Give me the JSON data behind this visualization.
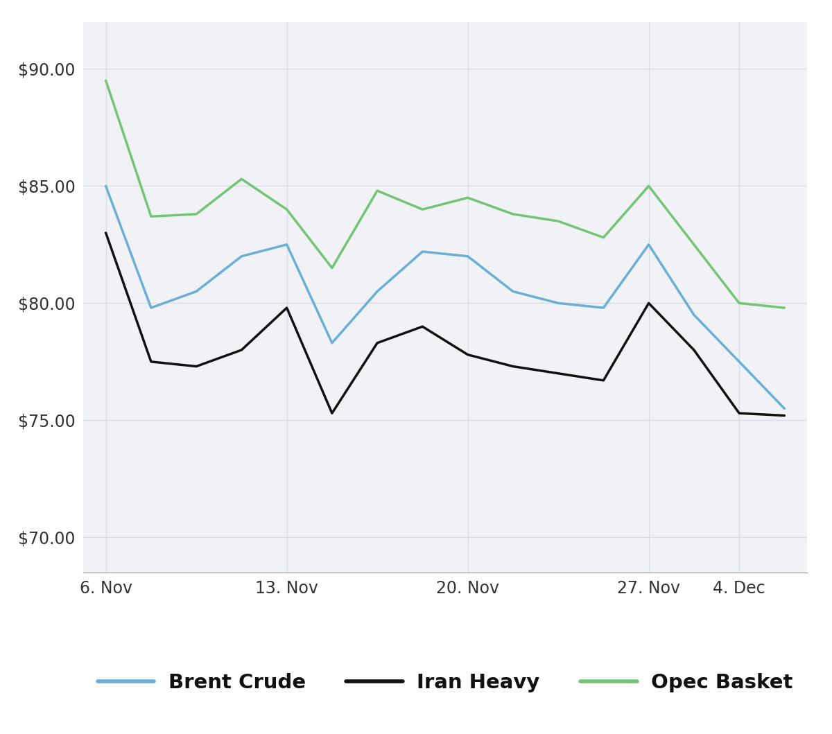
{
  "brent_crude": [
    85.0,
    79.8,
    80.5,
    82.0,
    82.5,
    78.3,
    80.5,
    82.2,
    82.0,
    80.5,
    80.0,
    79.8,
    82.5,
    79.5,
    77.5,
    75.5
  ],
  "iran_heavy": [
    83.0,
    77.5,
    77.3,
    78.0,
    79.8,
    75.3,
    78.3,
    79.0,
    77.8,
    77.3,
    77.0,
    76.7,
    80.0,
    78.0,
    75.3,
    75.2
  ],
  "opec_basket": [
    89.5,
    83.7,
    83.8,
    85.3,
    84.0,
    81.5,
    84.8,
    84.0,
    84.5,
    83.8,
    83.5,
    82.8,
    85.0,
    82.5,
    80.0,
    79.8
  ],
  "x_positions": [
    0,
    1,
    2,
    3,
    4,
    5,
    6,
    7,
    8,
    9,
    10,
    11,
    12,
    13,
    14,
    15
  ],
  "x_tick_positions": [
    0,
    4,
    8,
    12,
    14
  ],
  "x_tick_labels": [
    "6. Nov",
    "13. Nov",
    "20. Nov",
    "27. Nov",
    "4. Dec"
  ],
  "ylim": [
    68.5,
    92.0
  ],
  "yticks": [
    70.0,
    75.0,
    80.0,
    85.0,
    90.0
  ],
  "ytick_labels": [
    "$70.00",
    "$75.00",
    "$80.00",
    "$85.00",
    "$90.00"
  ],
  "brent_color": "#6baed6",
  "iran_color": "#111111",
  "opec_color": "#74c476",
  "line_width": 2.5,
  "legend_labels": [
    "Brent Crude",
    "Iran Heavy",
    "Opec Basket"
  ],
  "background_color": "#ffffff",
  "plot_bg_color": "#f0f2f5",
  "grid_color": "#d8dde6",
  "font_size_ticks": 17,
  "font_size_legend": 21
}
